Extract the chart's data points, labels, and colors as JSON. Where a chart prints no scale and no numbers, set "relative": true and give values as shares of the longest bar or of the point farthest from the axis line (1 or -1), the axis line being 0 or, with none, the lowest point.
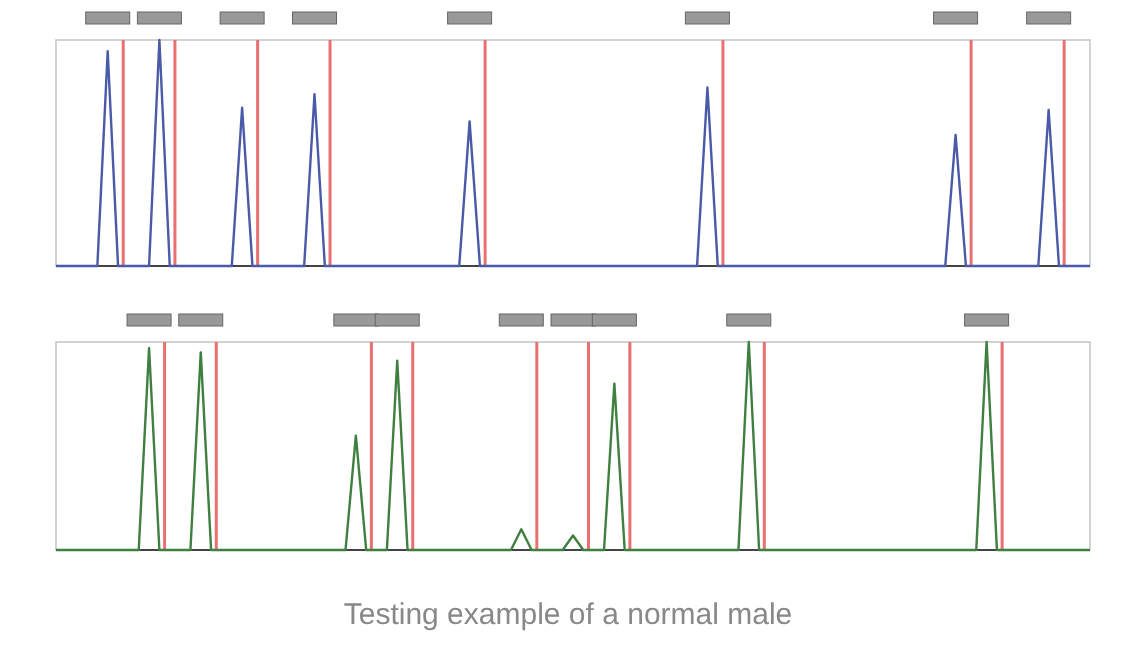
{
  "chart_data": [
    {
      "type": "line",
      "relative": true,
      "marker": "none",
      "line_style": "solid",
      "categories": [
        null,
        null,
        null,
        null,
        null,
        null,
        null,
        null,
        null,
        null,
        null,
        null,
        null,
        null,
        null,
        null,
        null,
        null,
        null,
        null,
        null,
        null,
        null,
        null,
        null,
        null,
        null,
        null,
        null,
        null,
        null,
        null,
        null,
        null,
        null,
        null,
        null,
        null,
        null,
        null,
        null,
        null,
        null,
        null,
        null,
        null,
        null,
        null,
        null,
        null,
        null,
        null,
        null,
        null,
        null,
        null,
        null,
        null,
        null,
        null,
        null,
        null,
        null,
        null,
        null,
        null,
        null,
        null,
        null,
        null,
        null,
        null,
        null,
        null,
        null,
        null,
        null,
        null,
        null,
        null,
        null,
        null,
        null,
        null,
        null,
        null,
        null,
        null,
        null,
        null,
        null,
        null,
        null,
        null,
        null,
        null,
        null,
        null,
        null,
        null,
        null
      ],
      "series": [
        {
          "color": "#4a5aa8",
          "values": [
            0,
            0,
            0,
            0,
            0,
            0.95,
            0,
            0,
            0,
            0,
            1,
            0,
            0,
            0,
            0,
            0,
            0,
            0,
            0.7,
            0,
            0,
            0,
            0,
            0,
            0,
            0.76,
            0,
            0,
            0,
            0,
            0,
            0,
            0,
            0,
            0,
            0,
            0,
            0,
            0,
            0,
            0.64,
            0,
            0,
            0,
            0,
            0,
            0,
            0,
            0,
            0,
            0,
            0,
            0,
            0,
            0,
            0,
            0,
            0,
            0,
            0,
            0,
            0,
            0,
            0.79,
            0,
            0,
            0,
            0,
            0,
            0,
            0,
            0,
            0,
            0,
            0,
            0,
            0,
            0,
            0,
            0,
            0,
            0,
            0,
            0,
            0,
            0,
            0,
            0.58,
            0,
            0,
            0,
            0,
            0,
            0,
            0,
            0,
            0.69,
            0,
            0,
            0,
            0
          ]
        }
      ]
    },
    {
      "type": "line",
      "relative": true,
      "marker": "none",
      "line_style": "solid",
      "categories": [
        null,
        null,
        null,
        null,
        null,
        null,
        null,
        null,
        null,
        null,
        null,
        null,
        null,
        null,
        null,
        null,
        null,
        null,
        null,
        null,
        null,
        null,
        null,
        null,
        null,
        null,
        null,
        null,
        null,
        null,
        null,
        null,
        null,
        null,
        null,
        null,
        null,
        null,
        null,
        null,
        null,
        null,
        null,
        null,
        null,
        null,
        null,
        null,
        null,
        null,
        null,
        null,
        null,
        null,
        null,
        null,
        null,
        null,
        null,
        null,
        null,
        null,
        null,
        null,
        null,
        null,
        null,
        null,
        null,
        null,
        null,
        null,
        null,
        null,
        null,
        null,
        null,
        null,
        null,
        null,
        null,
        null,
        null,
        null,
        null,
        null,
        null,
        null,
        null,
        null,
        null,
        null,
        null,
        null,
        null,
        null,
        null,
        null,
        null,
        null,
        null
      ],
      "series": [
        {
          "color": "#3f7f3f",
          "values": [
            0,
            0,
            0,
            0,
            0,
            0,
            0,
            0,
            0,
            0.97,
            0,
            0,
            0,
            0,
            0.95,
            0,
            0,
            0,
            0,
            0,
            0,
            0,
            0,
            0,
            0,
            0,
            0,
            0,
            0,
            0.55,
            0,
            0,
            0,
            0.91,
            0,
            0,
            0,
            0,
            0,
            0,
            0,
            0,
            0,
            0,
            0,
            0.1,
            0,
            0,
            0,
            0,
            0.07,
            0,
            0,
            0,
            0.8,
            0,
            0,
            0,
            0,
            0,
            0,
            0,
            0,
            0,
            0,
            0,
            0,
            1,
            0,
            0,
            0,
            0,
            0,
            0,
            0,
            0,
            0,
            0,
            0,
            0,
            0,
            0,
            0,
            0,
            0,
            0,
            0,
            0,
            0,
            0,
            1,
            0,
            0,
            0,
            0,
            0,
            0,
            0,
            0,
            0,
            0
          ]
        }
      ],
      "annotations": [
        "Testing example of a normal male"
      ]
    }
  ]
}
